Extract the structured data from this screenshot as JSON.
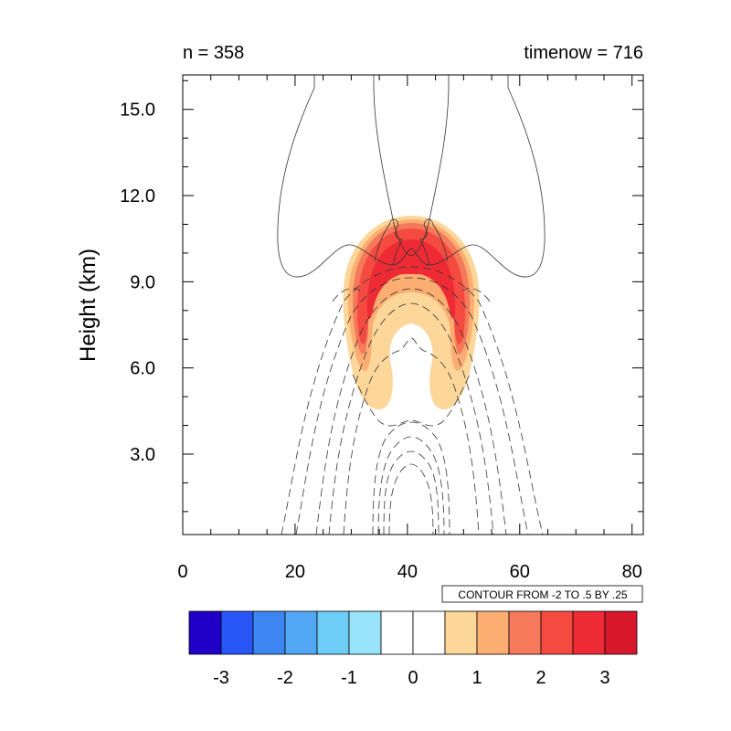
{
  "chart_data": {
    "type": "contour",
    "title_left": "n = 358",
    "title_right": "timenow = 716",
    "ylabel": "Height (km)",
    "xlabel": "",
    "xlim": [
      0,
      82
    ],
    "ylim": [
      0.2,
      16.2
    ],
    "x_ticks": [
      0,
      20,
      40,
      60,
      80
    ],
    "x_tick_labels": [
      "0",
      "20",
      "40",
      "60",
      "80"
    ],
    "y_ticks": [
      3,
      6,
      9,
      12,
      15
    ],
    "y_tick_labels": [
      "3.0",
      "6.0",
      "9.0",
      "12.0",
      "15.0"
    ],
    "contour_info": "CONTOUR FROM -2 TO .5 BY .25",
    "colorbar": {
      "colors": [
        "#2000c8",
        "#2855f5",
        "#3d86f2",
        "#52a7f5",
        "#6dcdf7",
        "#98e5fb",
        "#ffffff",
        "#ffffff",
        "#fdd69a",
        "#fcae72",
        "#f5795b",
        "#f54a40",
        "#ee2b35",
        "#d7172b"
      ],
      "tick_labels": [
        "-3",
        "-2",
        "-1",
        "0",
        "1",
        "2",
        "3"
      ],
      "tick_values": [
        -3,
        -2,
        -1,
        0,
        1,
        2,
        3
      ],
      "range": [
        -3.5,
        3.5
      ]
    },
    "filled_field": {
      "description_levels": [
        0.5,
        1.0,
        1.5,
        2.0,
        2.5
      ],
      "level_colors": [
        "#fdd69a",
        "#fcae72",
        "#f5795b",
        "#f54a40",
        "#ee2b35"
      ]
    },
    "line_contours": {
      "solid_positive": 3,
      "dashed_negative": 10
    }
  }
}
